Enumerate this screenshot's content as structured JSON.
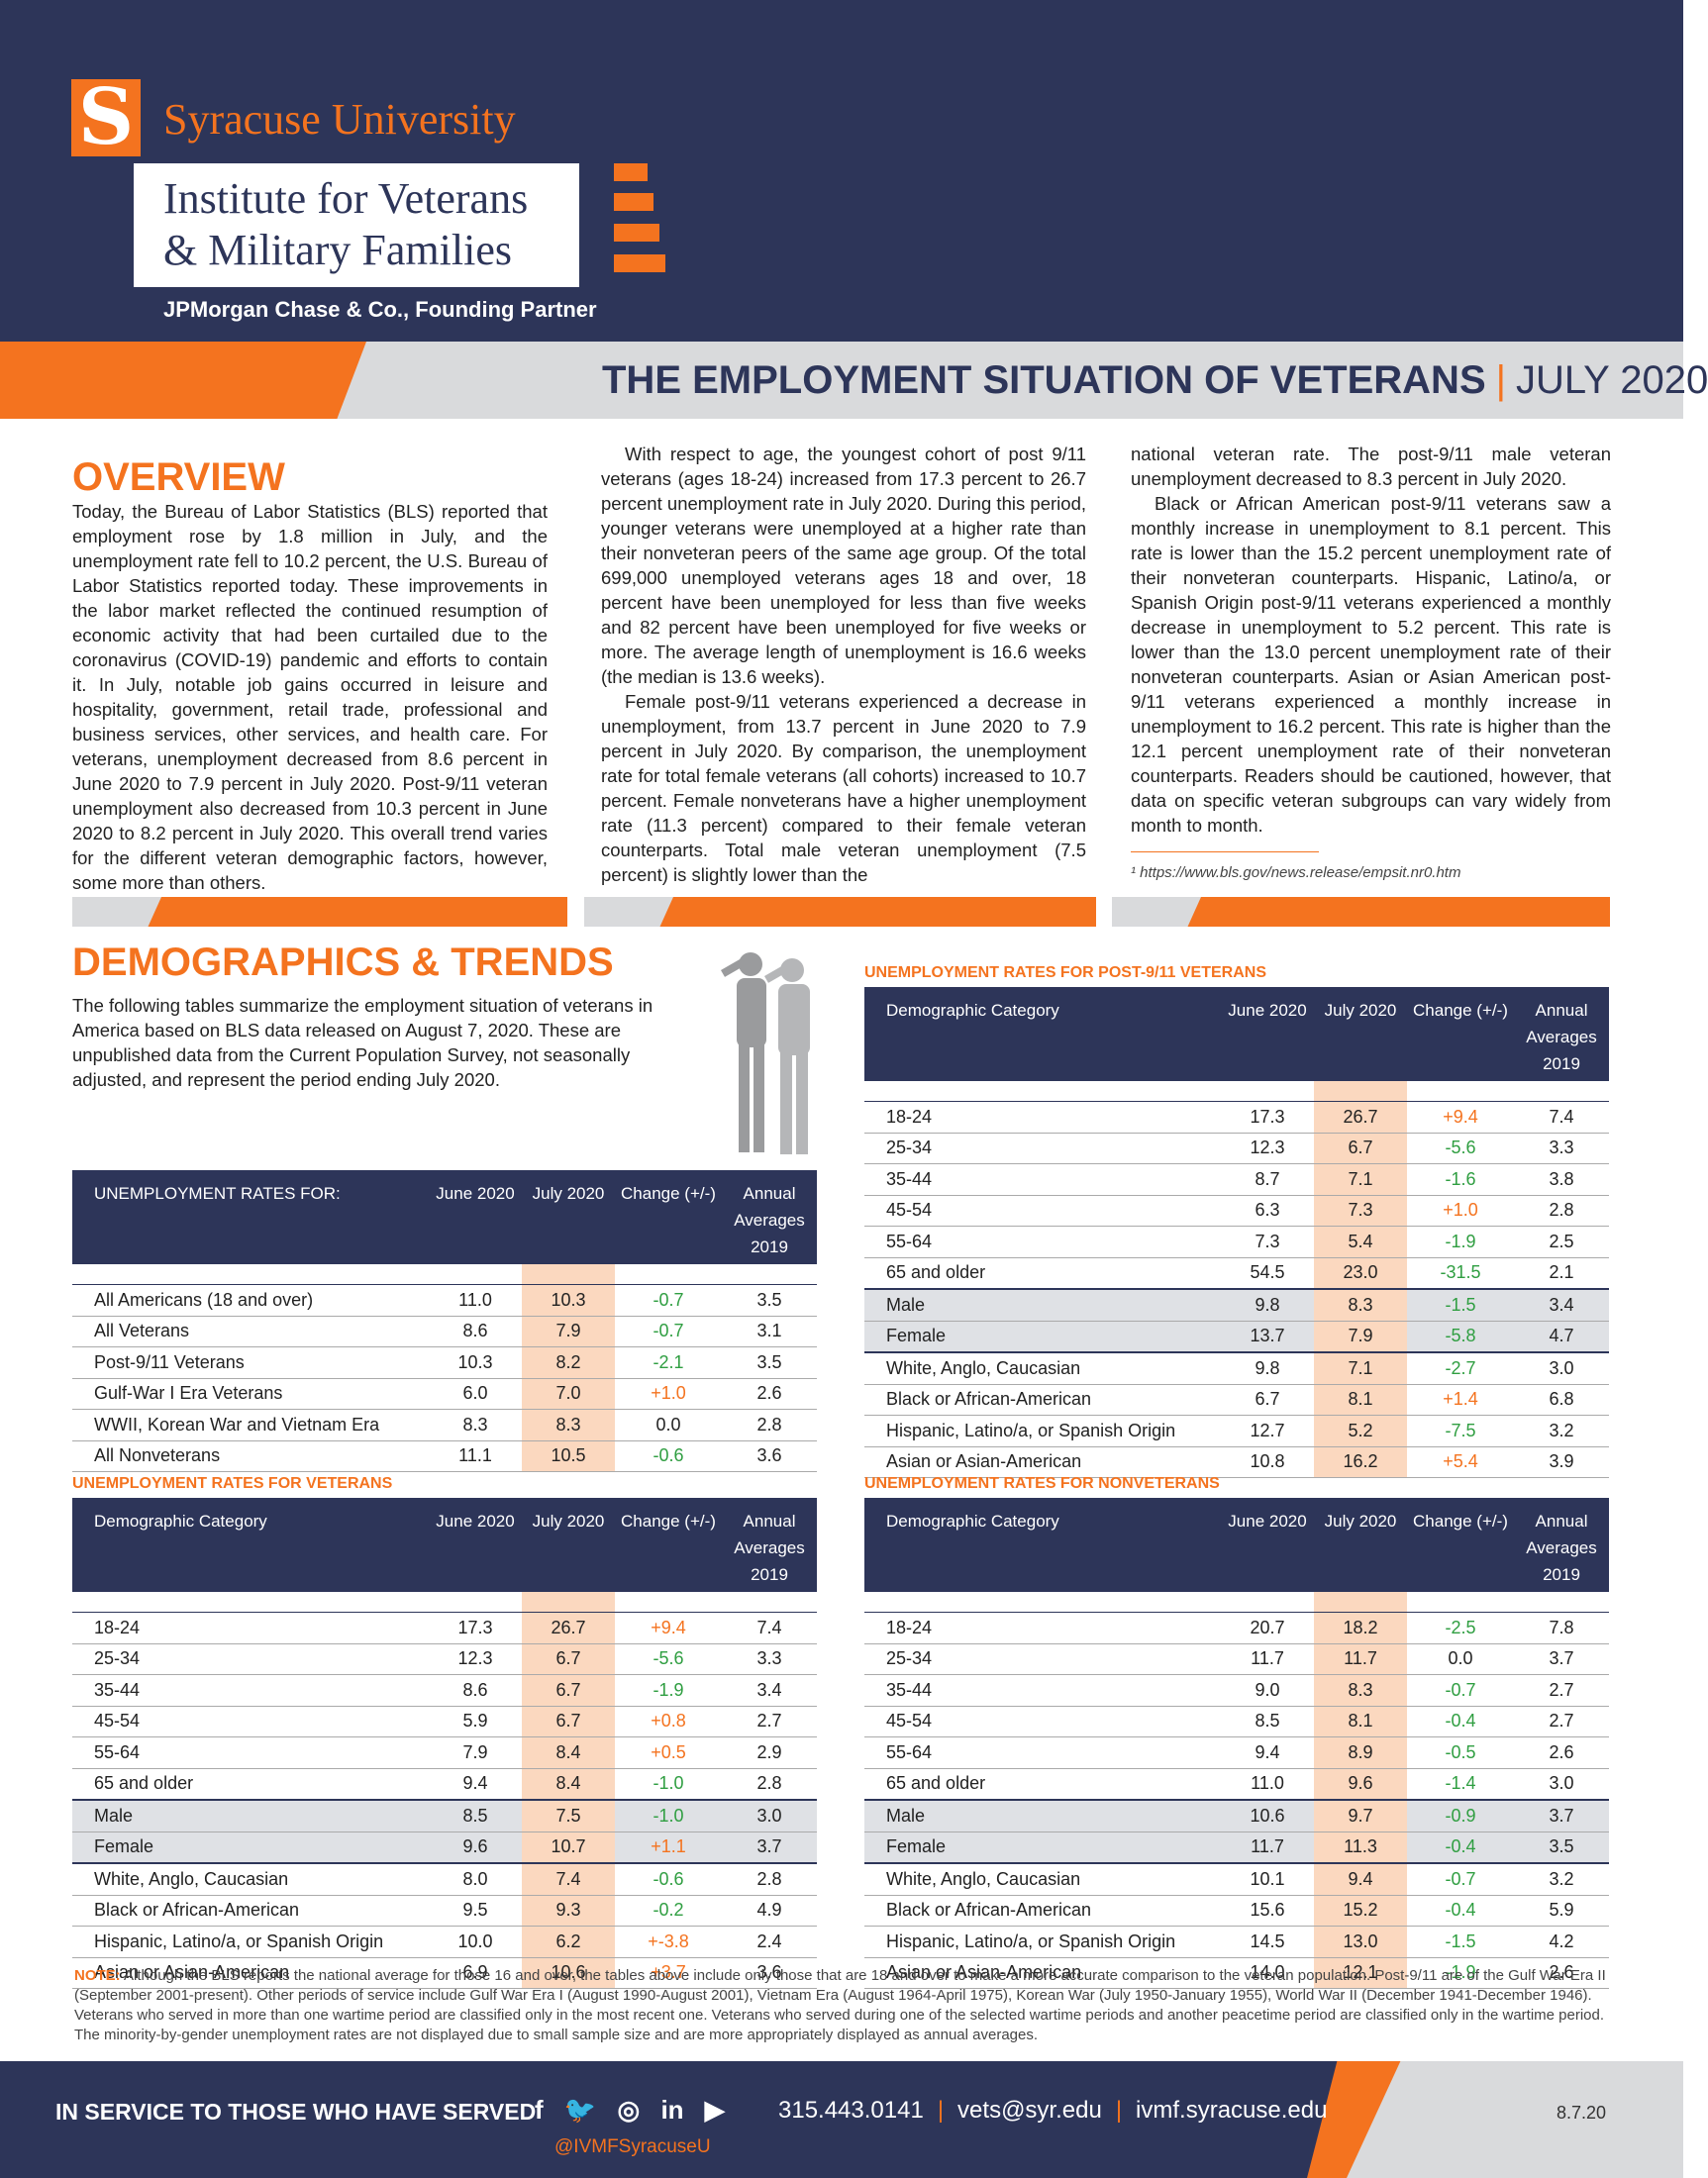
{
  "header": {
    "university": "Syracuse University",
    "logo_letter": "S",
    "institute_line1": "Institute for Veterans",
    "institute_line2": "& Military Families",
    "partner": "JPMorgan Chase & Co., Founding Partner"
  },
  "title": {
    "main": "THE EMPLOYMENT SITUATION OF VETERANS",
    "separator": "|",
    "date": "JULY 2020"
  },
  "overview": {
    "heading": "OVERVIEW",
    "col1_text": "Today, the Bureau of Labor Statistics (BLS) reported that employment rose by 1.8 million in July, and the unemployment rate fell to 10.2 percent, the U.S. Bureau of Labor Statistics reported today. These improvements in the labor market reflected the continued resumption of economic activity that had been curtailed due to the coronavirus (COVID-19) pandemic and efforts to contain it. In July, notable job gains occurred in leisure and hospitality, government, retail trade, professional and business services, other services, and health care. For veterans, unemployment decreased from 8.6 percent in June 2020 to 7.9 percent in July 2020. Post-9/11 veteran unemployment also decreased from 10.3 percent in June 2020 to 8.2 percent in July 2020. This overall trend varies for the different veteran demographic factors, however, some more than others.",
    "col2_p1": "With respect to age, the youngest cohort of post 9/11 veterans (ages 18-24) increased from 17.3 percent to 26.7 percent unemployment rate in July 2020. During this period, younger veterans were unemployed at a higher rate than their nonveteran peers of the same age group. Of the total 699,000 unemployed veterans ages 18 and over, 18 percent have been unemployed for less than five weeks and 82 percent have been unemployed for five weeks or more. The average length of unemployment is 16.6 weeks (the median is 13.6 weeks).",
    "col2_p2": "Female post-9/11 veterans experienced a decrease in unemployment, from 13.7 percent in June 2020 to 7.9 percent in July 2020. By comparison, the unemployment rate for total female veterans (all cohorts) increased to 10.7 percent. Female nonveterans have a higher unemployment rate (11.3 percent) compared to their female veteran counterparts. Total male veteran unemployment (7.5 percent) is slightly lower than the",
    "col3_p1": "national veteran rate. The post-9/11 male veteran unemployment decreased to 8.3 percent in July 2020.",
    "col3_p2": "Black or African American post-9/11 veterans saw a monthly increase in unemployment to 8.1 percent. This rate is lower than the 15.2 percent unemployment rate of their nonveteran counterparts. Hispanic, Latino/a, or Spanish Origin post-9/11 veterans experienced a monthly decrease in unemployment to 5.2 percent. This rate is lower than the 13.0 percent unemployment rate of their nonveteran counterparts. Asian or Asian American post-9/11 veterans experienced a monthly increase in unemployment to 16.2 percent. This rate is higher than the 12.1 percent unemployment rate of their nonveteran counterparts. Readers should be cautioned, however, that data on specific veteran subgroups can vary widely from month to month.",
    "footnote": "¹ https://www.bls.gov/news.release/empsit.nr0.htm"
  },
  "demographics": {
    "heading": "DEMOGRAPHICS & TRENDS",
    "intro": "The following tables summarize the employment situation of veterans in America based on BLS data released on August 7, 2020. These are unpublished data from the Current Population Survey, not seasonally adjusted, and represent the period ending July 2020."
  },
  "col_headers": {
    "june": "June 2020",
    "july": "July 2020",
    "change": "Change (+/-)",
    "annual": "Annual Averages 2019",
    "demographic": "Demographic Category"
  },
  "table_all": {
    "header": "UNEMPLOYMENT RATES FOR:",
    "rows": [
      {
        "label": "All Americans (18 and over)",
        "june": "11.0",
        "july": "10.3",
        "change": "-0.7",
        "annual": "3.5"
      },
      {
        "label": "All Veterans",
        "june": "8.6",
        "july": "7.9",
        "change": "-0.7",
        "annual": "3.1"
      },
      {
        "label": "Post-9/11 Veterans",
        "june": "10.3",
        "july": "8.2",
        "change": "-2.1",
        "annual": "3.5"
      },
      {
        "label": "Gulf-War I Era Veterans",
        "june": "6.0",
        "july": "7.0",
        "change": "+1.0",
        "annual": "2.6"
      },
      {
        "label": "WWII, Korean War and Vietnam Era",
        "june": "8.3",
        "july": "8.3",
        "change": "0.0",
        "annual": "2.8"
      },
      {
        "label": "All Nonveterans",
        "june": "11.1",
        "july": "10.5",
        "change": "-0.6",
        "annual": "3.6"
      }
    ]
  },
  "table_post911": {
    "caption": "UNEMPLOYMENT RATES FOR POST-9/11 VETERANS",
    "rows": [
      {
        "label": "18-24",
        "june": "17.3",
        "july": "26.7",
        "change": "+9.4",
        "annual": "7.4"
      },
      {
        "label": "25-34",
        "june": "12.3",
        "july": "6.7",
        "change": "-5.6",
        "annual": "3.3"
      },
      {
        "label": "35-44",
        "june": "8.7",
        "july": "7.1",
        "change": "-1.6",
        "annual": "3.8"
      },
      {
        "label": "45-54",
        "june": "6.3",
        "july": "7.3",
        "change": "+1.0",
        "annual": "2.8"
      },
      {
        "label": "55-64",
        "june": "7.3",
        "july": "5.4",
        "change": "-1.9",
        "annual": "2.5"
      },
      {
        "label": "65 and older",
        "june": "54.5",
        "july": "23.0",
        "change": "-31.5",
        "annual": "2.1"
      },
      {
        "label": "Male",
        "june": "9.8",
        "july": "8.3",
        "change": "-1.5",
        "annual": "3.4"
      },
      {
        "label": "Female",
        "june": "13.7",
        "july": "7.9",
        "change": "-5.8",
        "annual": "4.7"
      },
      {
        "label": "White, Anglo, Caucasian",
        "june": "9.8",
        "july": "7.1",
        "change": "-2.7",
        "annual": "3.0"
      },
      {
        "label": "Black or African-American",
        "june": "6.7",
        "july": "8.1",
        "change": "+1.4",
        "annual": "6.8"
      },
      {
        "label": "Hispanic, Latino/a, or Spanish Origin",
        "june": "12.7",
        "july": "5.2",
        "change": "-7.5",
        "annual": "3.2"
      },
      {
        "label": "Asian or Asian-American",
        "june": "10.8",
        "july": "16.2",
        "change": "+5.4",
        "annual": "3.9"
      }
    ]
  },
  "table_veterans": {
    "caption": "UNEMPLOYMENT RATES FOR VETERANS",
    "rows": [
      {
        "label": "18-24",
        "june": "17.3",
        "july": "26.7",
        "change": "+9.4",
        "annual": "7.4"
      },
      {
        "label": "25-34",
        "june": "12.3",
        "july": "6.7",
        "change": "-5.6",
        "annual": "3.3"
      },
      {
        "label": "35-44",
        "june": "8.6",
        "july": "6.7",
        "change": "-1.9",
        "annual": "3.4"
      },
      {
        "label": "45-54",
        "june": "5.9",
        "july": "6.7",
        "change": "+0.8",
        "annual": "2.7"
      },
      {
        "label": "55-64",
        "june": "7.9",
        "july": "8.4",
        "change": "+0.5",
        "annual": "2.9"
      },
      {
        "label": "65 and older",
        "june": "9.4",
        "july": "8.4",
        "change": "-1.0",
        "annual": "2.8"
      },
      {
        "label": "Male",
        "june": "8.5",
        "july": "7.5",
        "change": "-1.0",
        "annual": "3.0"
      },
      {
        "label": "Female",
        "june": "9.6",
        "july": "10.7",
        "change": "+1.1",
        "annual": "3.7"
      },
      {
        "label": "White, Anglo, Caucasian",
        "june": "8.0",
        "july": "7.4",
        "change": "-0.6",
        "annual": "2.8"
      },
      {
        "label": "Black or African-American",
        "june": "9.5",
        "july": "9.3",
        "change": "-0.2",
        "annual": "4.9"
      },
      {
        "label": "Hispanic, Latino/a, or Spanish Origin",
        "june": "10.0",
        "july": "6.2",
        "change": "+-3.8",
        "annual": "2.4"
      },
      {
        "label": "Asian or Asian-American",
        "june": "6.9",
        "july": "10.6",
        "change": "+3.7",
        "annual": "3.6"
      }
    ]
  },
  "table_nonveterans": {
    "caption": "UNEMPLOYMENT RATES FOR NONVETERANS",
    "rows": [
      {
        "label": "18-24",
        "june": "20.7",
        "july": "18.2",
        "change": "-2.5",
        "annual": "7.8"
      },
      {
        "label": "25-34",
        "june": "11.7",
        "july": "11.7",
        "change": "0.0",
        "annual": "3.7"
      },
      {
        "label": "35-44",
        "june": "9.0",
        "july": "8.3",
        "change": "-0.7",
        "annual": "2.7"
      },
      {
        "label": "45-54",
        "june": "8.5",
        "july": "8.1",
        "change": "-0.4",
        "annual": "2.7"
      },
      {
        "label": "55-64",
        "june": "9.4",
        "july": "8.9",
        "change": "-0.5",
        "annual": "2.6"
      },
      {
        "label": "65 and older",
        "june": "11.0",
        "july": "9.6",
        "change": "-1.4",
        "annual": "3.0"
      },
      {
        "label": "Male",
        "june": "10.6",
        "july": "9.7",
        "change": "-0.9",
        "annual": "3.7"
      },
      {
        "label": "Female",
        "june": "11.7",
        "july": "11.3",
        "change": "-0.4",
        "annual": "3.5"
      },
      {
        "label": "White, Anglo, Caucasian",
        "june": "10.1",
        "july": "9.4",
        "change": "-0.7",
        "annual": "3.2"
      },
      {
        "label": "Black or African-American",
        "june": "15.6",
        "july": "15.2",
        "change": "-0.4",
        "annual": "5.9"
      },
      {
        "label": "Hispanic, Latino/a, or Spanish Origin",
        "june": "14.5",
        "july": "13.0",
        "change": "-1.5",
        "annual": "4.2"
      },
      {
        "label": "Asian or Asian-American",
        "june": "14.0",
        "july": "12.1",
        "change": "-1.9",
        "annual": "2.6"
      }
    ]
  },
  "note": {
    "label": "NOTE:",
    "text": "Although the BLS reports the national average for those 16 and over, the tables above include only those that are 18 and over to make a more accurate comparison to the veteran population. Post-9/11 are of the Gulf War Era II (September 2001-present). Other periods of service include Gulf War Era I (August 1990-August 2001), Vietnam Era (August 1964-April 1975), Korean War (July 1950-January 1955), World War II (December 1941-December 1946). Veterans who served in more than one wartime period are classified only in the most recent one. Veterans who served during one of the selected wartime periods and another peacetime period are classified only in the wartime period. The minority-by-gender unemployment rates are not displayed due to small sample size and are more appropriately displayed as annual averages."
  },
  "footer": {
    "tagline": "IN SERVICE TO THOSE WHO HAVE SERVED",
    "social": [
      {
        "icon": "facebook-icon",
        "glyph": "f"
      },
      {
        "icon": "twitter-icon",
        "glyph": "🐦"
      },
      {
        "icon": "instagram-icon",
        "glyph": "◎"
      },
      {
        "icon": "linkedin-icon",
        "glyph": "in"
      },
      {
        "icon": "youtube-icon",
        "glyph": "▶"
      }
    ],
    "handle": "@IVMFSyracuseU",
    "phone": "315.443.0141",
    "email": "vets@syr.edu",
    "website": "ivmf.syracuse.edu",
    "date": "8.7.20"
  },
  "colors": {
    "navy": "#2d3559",
    "orange": "#f4731f",
    "grey": "#d9dadc",
    "july_highlight": "#fbd8bf",
    "positive": "#f4731f",
    "negative": "#2f9e41"
  }
}
